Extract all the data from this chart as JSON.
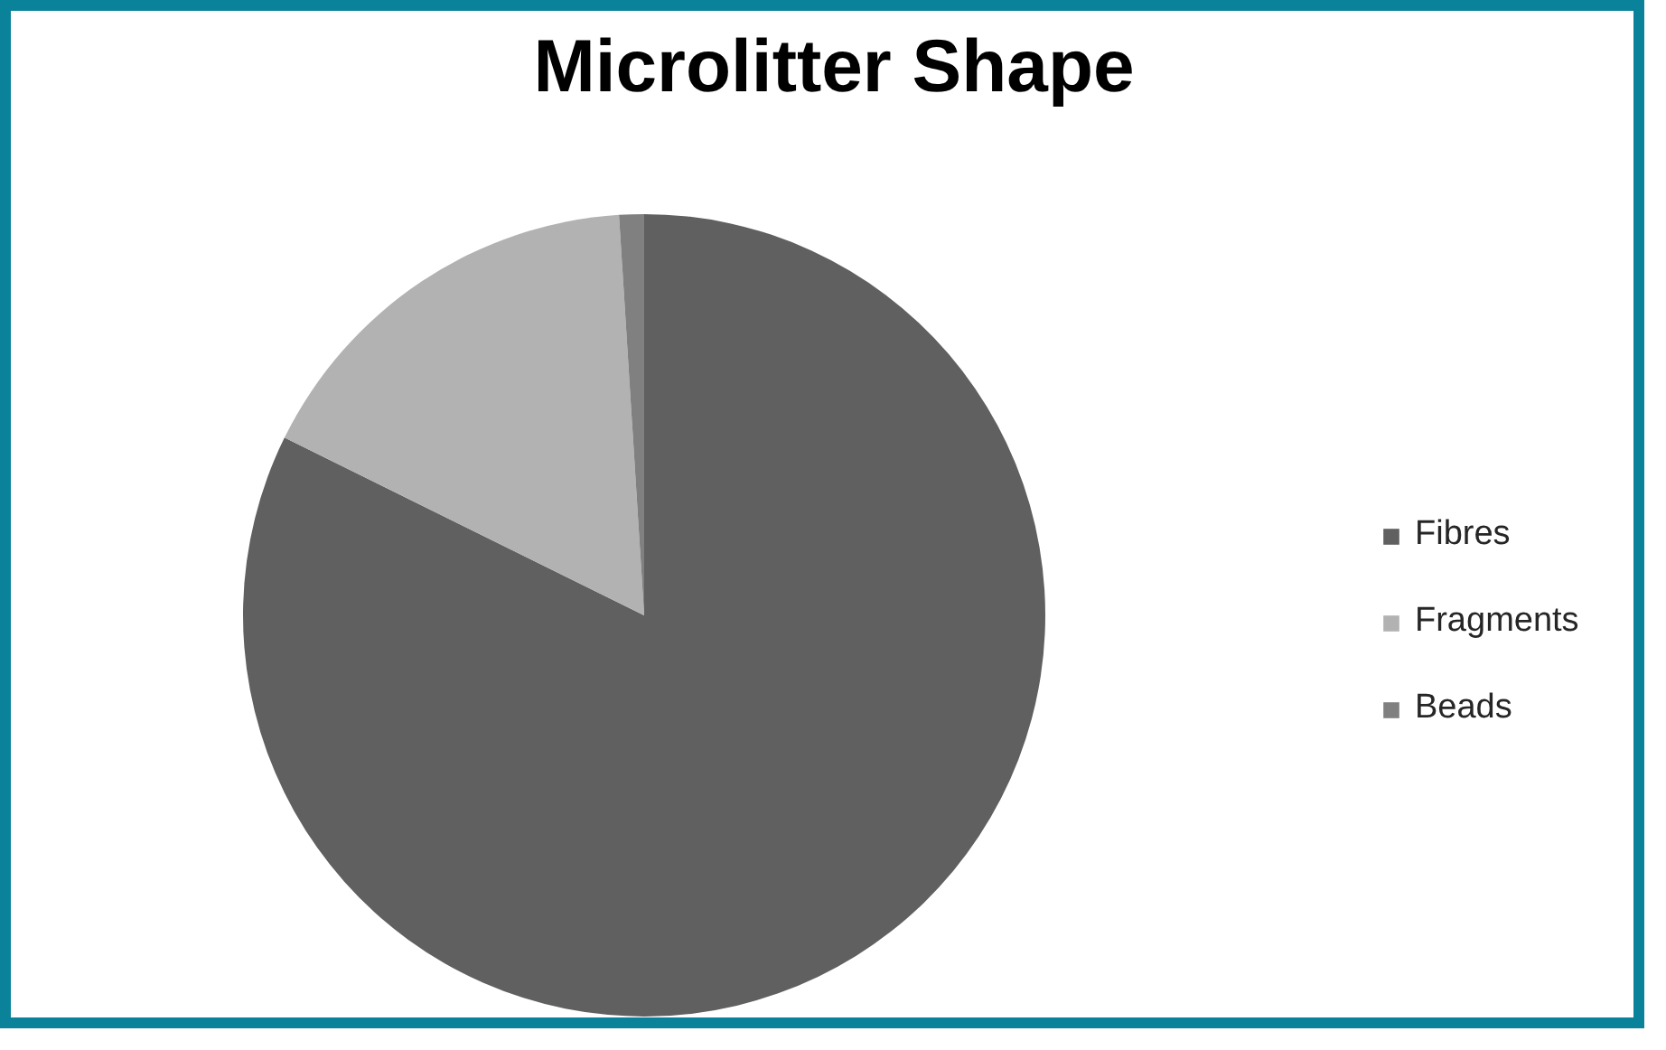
{
  "chart_data": {
    "type": "pie",
    "title": "Microlitter Shape",
    "categories": [
      "Fibres",
      "Fragments",
      "Beads"
    ],
    "values": [
      82.3,
      16.7,
      1.0
    ],
    "colors": [
      "#606060",
      "#b2b2b2",
      "#808080"
    ],
    "legend": "right"
  }
}
